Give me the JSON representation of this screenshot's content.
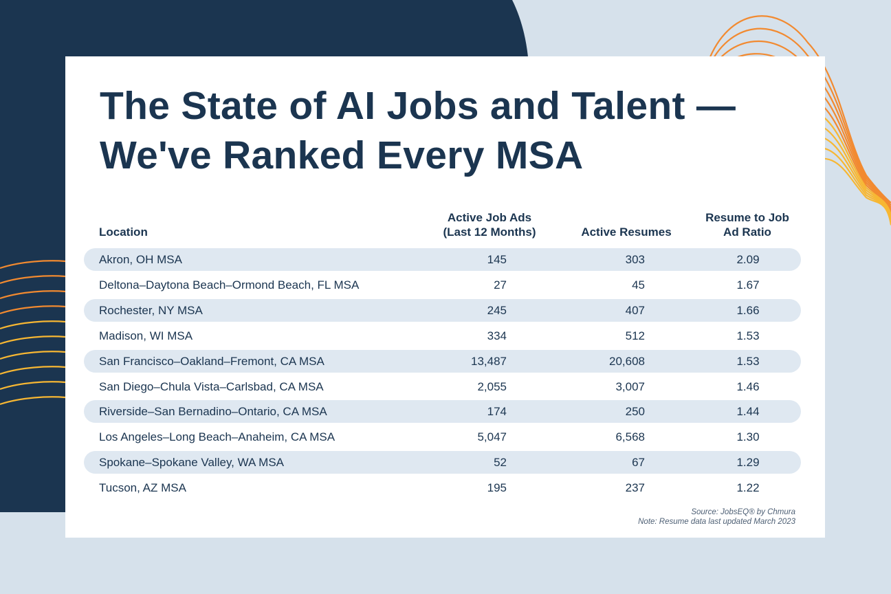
{
  "title_lines": [
    "The State of AI Jobs and Talent —",
    "We've Ranked Every MSA"
  ],
  "colors": {
    "navy": "#1b3550",
    "background": "#d6e1eb",
    "stripe": "#dfe8f1",
    "accent_orange": "#f28a30",
    "accent_yellow": "#f7b733"
  },
  "chart_data": {
    "type": "table",
    "columns": [
      "Location",
      "Active Job Ads (Last 12 Months)",
      "Active Resumes",
      "Resume to Job Ad Ratio"
    ],
    "header": {
      "location": "Location",
      "job_ads_1": "Active Job Ads",
      "job_ads_2": "(Last 12 Months)",
      "resumes": "Active Resumes",
      "ratio_1": "Resume to Job",
      "ratio_2": "Ad Ratio"
    },
    "rows": [
      [
        "Akron, OH MSA",
        "145",
        "303",
        "2.09"
      ],
      [
        "Deltona–Daytona Beach–Ormond Beach, FL MSA",
        "27",
        "45",
        "1.67"
      ],
      [
        "Rochester, NY MSA",
        "245",
        "407",
        "1.66"
      ],
      [
        "Madison, WI MSA",
        "334",
        "512",
        "1.53"
      ],
      [
        "San Francisco–Oakland–Fremont, CA MSA",
        "13,487",
        "20,608",
        "1.53"
      ],
      [
        "San Diego–Chula Vista–Carlsbad, CA MSA",
        "2,055",
        "3,007",
        "1.46"
      ],
      [
        "Riverside–San Bernadino–Ontario, CA MSA",
        "174",
        "250",
        "1.44"
      ],
      [
        "Los Angeles–Long Beach–Anaheim, CA MSA",
        "5,047",
        "6,568",
        "1.30"
      ],
      [
        "Spokane–Spokane Valley, WA MSA",
        "52",
        "67",
        "1.29"
      ],
      [
        "Tucson, AZ MSA",
        "195",
        "237",
        "1.22"
      ]
    ]
  },
  "footer": {
    "source": "Source: JobsEQ® by Chmura",
    "note": "Note: Resume data last updated March 2023"
  }
}
